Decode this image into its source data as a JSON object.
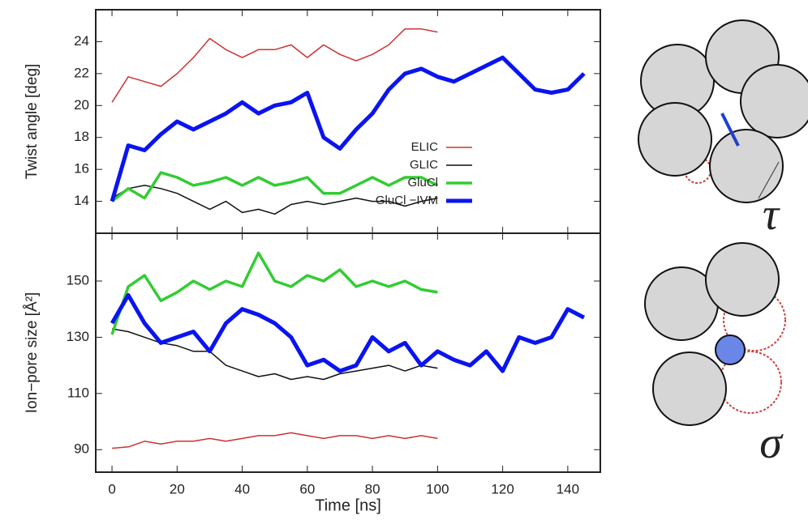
{
  "chart_data": [
    {
      "type": "line",
      "ylabel": "Twist angle [deg]",
      "annotation": "τ",
      "x": [
        0,
        5,
        10,
        15,
        20,
        25,
        30,
        35,
        40,
        45,
        50,
        55,
        60,
        65,
        70,
        75,
        80,
        85,
        90,
        95,
        100,
        105,
        110,
        115,
        120,
        125,
        130,
        135,
        140,
        145
      ],
      "xlim": [
        -5,
        150
      ],
      "ylim": [
        12,
        26
      ],
      "yticks": [
        14,
        16,
        18,
        20,
        22,
        24
      ],
      "legend": "right",
      "series": [
        {
          "name": "ELIC",
          "color": "#cc3333",
          "width": 1.5,
          "values": [
            20.2,
            21.8,
            21.5,
            21.2,
            22.0,
            23.0,
            24.2,
            23.5,
            23.0,
            23.5,
            23.5,
            23.8,
            23.0,
            23.8,
            23.2,
            22.8,
            23.2,
            23.8,
            24.8,
            24.8,
            24.6,
            null,
            null,
            null,
            null,
            null,
            null,
            null,
            null,
            null
          ]
        },
        {
          "name": "GLIC",
          "color": "#111111",
          "width": 1.5,
          "values": [
            14.2,
            14.8,
            15.0,
            14.8,
            14.5,
            14.0,
            13.5,
            14.0,
            13.3,
            13.5,
            13.2,
            13.8,
            14.0,
            13.8,
            14.0,
            14.2,
            14.0,
            14.0,
            13.7,
            14.0,
            14.2,
            null,
            null,
            null,
            null,
            null,
            null,
            null,
            null,
            null
          ]
        },
        {
          "name": "GluCl",
          "color": "#33cc33",
          "width": 3.5,
          "values": [
            14.0,
            14.8,
            14.2,
            15.8,
            15.5,
            15.0,
            15.2,
            15.5,
            15.0,
            15.5,
            15.0,
            15.2,
            15.5,
            14.5,
            14.5,
            15.0,
            15.5,
            15.0,
            15.5,
            15.5,
            15.0,
            null,
            null,
            null,
            null,
            null,
            null,
            null,
            null,
            null
          ]
        },
        {
          "name": "GluCl −IVM",
          "color": "#0a14f0",
          "width": 5,
          "values": [
            14.0,
            17.5,
            17.2,
            18.2,
            19.0,
            18.5,
            19.0,
            19.5,
            20.2,
            19.5,
            20.0,
            20.2,
            20.8,
            18.0,
            17.3,
            18.5,
            19.5,
            21.0,
            22.0,
            22.3,
            21.8,
            21.5,
            22.0,
            22.5,
            23.0,
            22.0,
            21.0,
            20.8,
            21.0,
            22.0
          ]
        }
      ]
    },
    {
      "type": "line",
      "ylabel": "Ion−pore size [Å²]",
      "xlabel": "Time [ns]",
      "annotation": "σ",
      "x": [
        0,
        5,
        10,
        15,
        20,
        25,
        30,
        35,
        40,
        45,
        50,
        55,
        60,
        65,
        70,
        75,
        80,
        85,
        90,
        95,
        100,
        105,
        110,
        115,
        120,
        125,
        130,
        135,
        140,
        145
      ],
      "xlim": [
        -5,
        150
      ],
      "xticks": [
        0,
        20,
        40,
        60,
        80,
        100,
        120,
        140
      ],
      "ylim": [
        82,
        167
      ],
      "yticks": [
        90,
        110,
        130,
        150
      ],
      "series": [
        {
          "color": "#cc3333",
          "width": 1.5,
          "values": [
            90.5,
            91,
            93,
            92,
            93,
            93,
            94,
            93,
            94,
            95,
            95,
            96,
            95,
            94,
            95,
            95,
            94,
            95,
            94,
            95,
            94,
            null,
            null,
            null,
            null,
            null,
            null,
            null,
            null,
            null
          ]
        },
        {
          "color": "#111111",
          "width": 1.5,
          "values": [
            133,
            132,
            130,
            128,
            127,
            125,
            125,
            120,
            118,
            116,
            117,
            115,
            116,
            115,
            117,
            118,
            119,
            120,
            118,
            120,
            119,
            null,
            null,
            null,
            null,
            null,
            null,
            null,
            null,
            null
          ]
        },
        {
          "color": "#33cc33",
          "width": 3.5,
          "values": [
            131,
            148,
            152,
            143,
            146,
            150,
            147,
            150,
            148,
            160,
            150,
            148,
            152,
            150,
            154,
            148,
            150,
            148,
            150,
            147,
            146,
            null,
            null,
            null,
            null,
            null,
            null,
            null,
            null,
            null
          ]
        },
        {
          "color": "#0a14f0",
          "width": 5,
          "values": [
            135,
            145,
            135,
            128,
            130,
            132,
            125,
            135,
            140,
            138,
            135,
            130,
            120,
            122,
            118,
            120,
            130,
            125,
            128,
            120,
            125,
            122,
            120,
            125,
            118,
            130,
            128,
            130,
            140,
            137
          ]
        }
      ]
    }
  ]
}
